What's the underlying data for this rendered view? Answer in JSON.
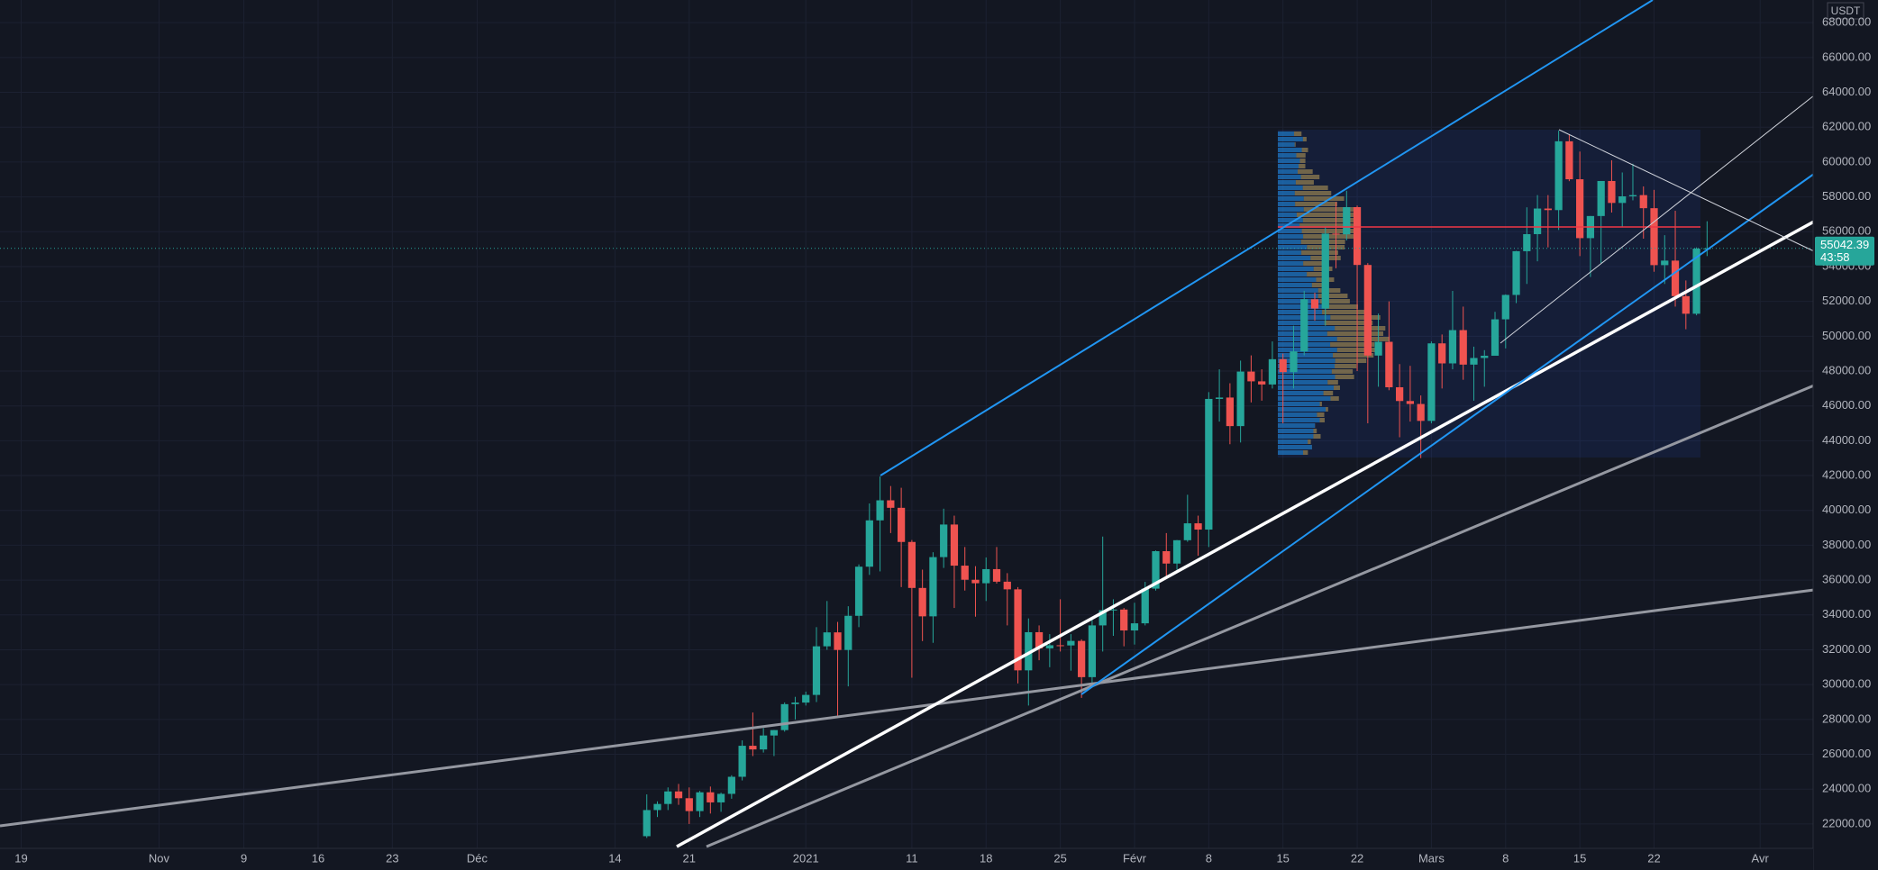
{
  "chart_data": {
    "type": "candlestick",
    "currency": "USDT",
    "countdown": "43:58",
    "xlim": [
      "10-17",
      "04-06"
    ],
    "xticks": [
      {
        "value": "10-19",
        "label": "19"
      },
      {
        "value": "11-01",
        "label": "Nov"
      },
      {
        "value": "11-09",
        "label": "9"
      },
      {
        "value": "11-16",
        "label": "16"
      },
      {
        "value": "11-23",
        "label": "23"
      },
      {
        "value": "12-01",
        "label": "Déc"
      },
      {
        "value": "12-14",
        "label": "14"
      },
      {
        "value": "12-21",
        "label": "21"
      },
      {
        "value": "01-01",
        "label": "2021"
      },
      {
        "value": "01-11",
        "label": "11"
      },
      {
        "value": "01-18",
        "label": "18"
      },
      {
        "value": "01-25",
        "label": "25"
      },
      {
        "value": "02-01",
        "label": "Févr"
      },
      {
        "value": "02-08",
        "label": "8"
      },
      {
        "value": "02-15",
        "label": "15"
      },
      {
        "value": "02-22",
        "label": "22"
      },
      {
        "value": "03-01",
        "label": "Mars"
      },
      {
        "value": "03-08",
        "label": "8"
      },
      {
        "value": "03-15",
        "label": "15"
      },
      {
        "value": "03-22",
        "label": "22"
      },
      {
        "value": "04-01",
        "label": "Avr"
      }
    ],
    "ylim": [
      20600,
      69300
    ],
    "yticks": [
      {
        "value": 22000,
        "label": "22000.00"
      },
      {
        "value": 24000,
        "label": "24000.00"
      },
      {
        "value": 26000,
        "label": "26000.00"
      },
      {
        "value": 28000,
        "label": "28000.00"
      },
      {
        "value": 30000,
        "label": "30000.00"
      },
      {
        "value": 32000,
        "label": "32000.00"
      },
      {
        "value": 34000,
        "label": "34000.00"
      },
      {
        "value": 36000,
        "label": "36000.00"
      },
      {
        "value": 38000,
        "label": "38000.00"
      },
      {
        "value": 40000,
        "label": "40000.00"
      },
      {
        "value": 42000,
        "label": "42000.00"
      },
      {
        "value": 44000,
        "label": "44000.00"
      },
      {
        "value": 46000,
        "label": "46000.00"
      },
      {
        "value": 48000,
        "label": "48000.00"
      },
      {
        "value": 50000,
        "label": "50000.00"
      },
      {
        "value": 52000,
        "label": "52000.00"
      },
      {
        "value": 54000,
        "label": "54000.00"
      },
      {
        "value": 56000,
        "label": "56000.00"
      },
      {
        "value": 58000,
        "label": "58000.00"
      },
      {
        "value": 60000,
        "label": "60000.00"
      },
      {
        "value": 62000,
        "label": "62000.00"
      },
      {
        "value": 64000,
        "label": "64000.00"
      },
      {
        "value": 66000,
        "label": "66000.00"
      },
      {
        "value": 68000,
        "label": "68000.00"
      }
    ],
    "grid": true,
    "up_color": "#26a69a",
    "down_color": "#ef5350",
    "x": [
      "12-17",
      "12-18",
      "12-19",
      "12-20",
      "12-21",
      "12-22",
      "12-23",
      "12-24",
      "12-25",
      "12-26",
      "12-27",
      "12-28",
      "12-29",
      "12-30",
      "12-31",
      "01-01",
      "01-02",
      "01-03",
      "01-04",
      "01-05",
      "01-06",
      "01-07",
      "01-08",
      "01-09",
      "01-10",
      "01-11",
      "01-12",
      "01-13",
      "01-14",
      "01-15",
      "01-16",
      "01-17",
      "01-18",
      "01-19",
      "01-20",
      "01-21",
      "01-22",
      "01-23",
      "01-24",
      "01-25",
      "01-26",
      "01-27",
      "01-28",
      "01-29",
      "01-30",
      "01-31",
      "02-01",
      "02-02",
      "02-03",
      "02-04",
      "02-05",
      "02-06",
      "02-07",
      "02-08",
      "02-09",
      "02-10",
      "02-11",
      "02-12",
      "02-13",
      "02-14",
      "02-15",
      "02-16",
      "02-17",
      "02-18",
      "02-19",
      "02-20",
      "02-21",
      "02-22",
      "02-23",
      "02-24",
      "02-25",
      "02-26",
      "02-27",
      "02-28",
      "03-01",
      "03-02",
      "03-03",
      "03-04",
      "03-05",
      "03-06",
      "03-07",
      "03-08",
      "03-09",
      "03-10",
      "03-11",
      "03-12",
      "03-13",
      "03-14",
      "03-15",
      "03-16",
      "03-17",
      "03-18",
      "03-19",
      "03-20",
      "03-21",
      "03-22",
      "03-23",
      "03-24",
      "03-25",
      "03-26",
      "03-27"
    ],
    "open": [
      21300,
      22800,
      23150,
      23870,
      23480,
      22740,
      23820,
      23240,
      23730,
      24710,
      26490,
      26280,
      27080,
      27390,
      28880,
      28970,
      29410,
      32200,
      33000,
      31990,
      33950,
      36770,
      39430,
      40580,
      40150,
      38190,
      35550,
      33920,
      37320,
      39190,
      36830,
      36020,
      35820,
      36630,
      35910,
      35470,
      30820,
      33010,
      32080,
      32260,
      32250,
      32510,
      30430,
      33400,
      34270,
      34310,
      33110,
      33520,
      35510,
      37660,
      36950,
      38290,
      39260,
      38900,
      46400,
      46480,
      44840,
      47970,
      47410,
      47230,
      48680,
      47940,
      49130,
      52120,
      51590,
      55890,
      55850,
      57410,
      54090,
      48890,
      49680,
      47070,
      46280,
      46110,
      45140,
      49590,
      48440,
      50350,
      48370,
      48750,
      48880,
      50970,
      52370,
      54880,
      55860,
      57330,
      57240,
      61190,
      59010,
      55630,
      56900,
      58910,
      57650,
      58030,
      58100,
      57350,
      54080,
      54340,
      52300,
      51290,
      55030
    ],
    "high": [
      23700,
      23300,
      24100,
      24300,
      24100,
      23900,
      24150,
      23800,
      24800,
      26800,
      28400,
      27500,
      27400,
      28980,
      29300,
      29600,
      33300,
      34800,
      33600,
      34500,
      36900,
      40400,
      41950,
      41400,
      41300,
      38300,
      36600,
      37600,
      40100,
      39700,
      37900,
      36800,
      37300,
      37900,
      36400,
      35600,
      33800,
      33400,
      32900,
      34900,
      32900,
      32600,
      33800,
      38500,
      34900,
      34400,
      34700,
      35900,
      37700,
      38700,
      38300,
      40900,
      39700,
      46790,
      48100,
      47300,
      48600,
      48900,
      48100,
      49700,
      49000,
      50600,
      52600,
      52500,
      56300,
      57700,
      58350,
      57500,
      54200,
      51300,
      52000,
      48400,
      48300,
      46600,
      49700,
      50100,
      52600,
      51700,
      49400,
      49200,
      51400,
      52400,
      54900,
      57400,
      58100,
      58100,
      61800,
      61600,
      60600,
      56900,
      58900,
      60100,
      59400,
      59900,
      58600,
      58400,
      55800,
      57200,
      53200,
      55100,
      56600
    ],
    "low": [
      21200,
      22400,
      22800,
      23100,
      22000,
      22400,
      22600,
      22700,
      23450,
      24500,
      25900,
      26100,
      25900,
      27300,
      28000,
      28800,
      29000,
      32000,
      28100,
      29900,
      33300,
      36300,
      36500,
      38700,
      35600,
      30400,
      32500,
      32400,
      36700,
      34400,
      35400,
      33900,
      34800,
      35800,
      33400,
      30070,
      28800,
      31400,
      31000,
      31900,
      30800,
      29240,
      30000,
      31900,
      32800,
      32200,
      32300,
      33400,
      35400,
      36200,
      36600,
      38200,
      37400,
      37900,
      45100,
      43800,
      43900,
      46200,
      46300,
      47000,
      45000,
      47000,
      48900,
      50900,
      50600,
      53900,
      55500,
      48000,
      45000,
      47100,
      46900,
      44200,
      45100,
      43000,
      45000,
      47000,
      48100,
      47500,
      46300,
      47100,
      48900,
      49300,
      51900,
      53000,
      54300,
      55100,
      56100,
      58900,
      54600,
      53400,
      54200,
      57100,
      56300,
      57800,
      55600,
      53700,
      53000,
      51700,
      50400,
      51200,
      54600
    ],
    "close": [
      22800,
      23150,
      23870,
      23480,
      22740,
      23820,
      23240,
      23730,
      24710,
      26490,
      26280,
      27080,
      27390,
      28880,
      28970,
      29410,
      32200,
      33000,
      31990,
      33950,
      36770,
      39430,
      40580,
      40150,
      38190,
      35550,
      33920,
      37320,
      39190,
      36830,
      36020,
      35820,
      36630,
      35910,
      35470,
      30820,
      33010,
      32080,
      32260,
      32250,
      32510,
      30430,
      33400,
      34270,
      34310,
      33110,
      33520,
      35510,
      37660,
      36950,
      38290,
      39260,
      38900,
      46400,
      46480,
      44840,
      47970,
      47410,
      47230,
      48680,
      47940,
      49130,
      52120,
      51590,
      55890,
      55850,
      57410,
      54090,
      48890,
      49680,
      47070,
      46280,
      46110,
      45140,
      49590,
      48440,
      50350,
      48370,
      48750,
      48880,
      50970,
      52370,
      54880,
      55860,
      57330,
      57240,
      61190,
      59010,
      55630,
      56900,
      58910,
      57650,
      58030,
      58100,
      57350,
      54080,
      54340,
      52300,
      51290,
      55030,
      55042.39
    ]
  }
}
